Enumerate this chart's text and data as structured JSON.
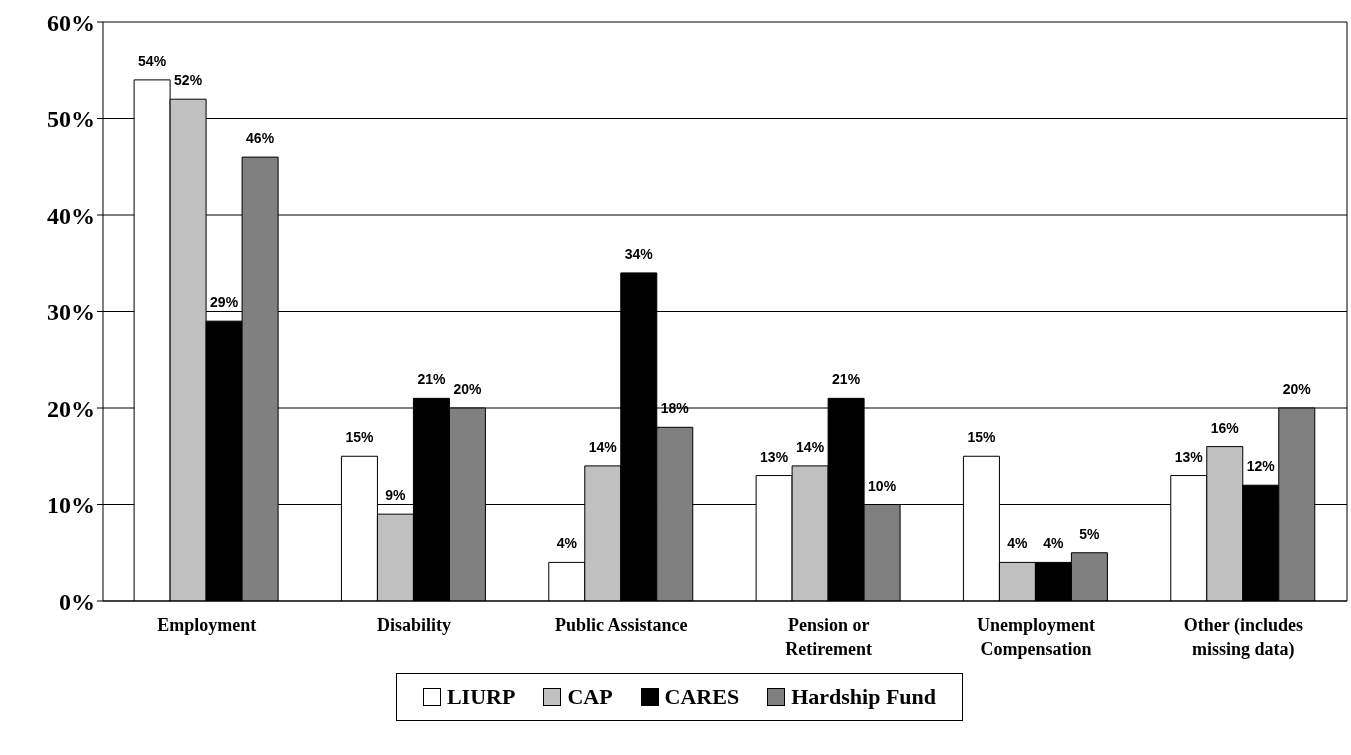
{
  "chart_data": {
    "type": "bar",
    "categories": [
      "Employment",
      "Disability",
      "Public Assistance",
      "Pension or Retirement",
      "Unemployment Compensation",
      "Other (includes missing data)"
    ],
    "series": [
      {
        "name": "LIURP",
        "color": "#ffffff",
        "values": [
          54,
          15,
          4,
          13,
          15,
          13
        ],
        "value_labels": [
          "54%",
          "15%",
          "4%",
          "13%",
          "15%",
          "13%"
        ]
      },
      {
        "name": "CAP",
        "color": "#c0c0c0",
        "values": [
          52,
          9,
          14,
          14,
          4,
          16
        ],
        "value_labels": [
          "52%",
          "9%",
          "14%",
          "14%",
          "4%",
          "16%"
        ]
      },
      {
        "name": "CARES",
        "color": "#000000",
        "values": [
          29,
          21,
          34,
          21,
          4,
          12
        ],
        "value_labels": [
          "29%",
          "21%",
          "34%",
          "21%",
          "4%",
          "12%"
        ]
      },
      {
        "name": "Hardship Fund",
        "color": "#808080",
        "values": [
          46,
          20,
          18,
          10,
          5,
          20
        ],
        "value_labels": [
          "46%",
          "20%",
          "18%",
          "10%",
          "5%",
          "20%"
        ]
      }
    ],
    "ylim": [
      0,
      60
    ],
    "yticks": [
      {
        "value": 0,
        "label": "0%"
      },
      {
        "value": 10,
        "label": "10%"
      },
      {
        "value": 20,
        "label": "20%"
      },
      {
        "value": 30,
        "label": "30%"
      },
      {
        "value": 40,
        "label": "40%"
      },
      {
        "value": 50,
        "label": "50%"
      },
      {
        "value": 60,
        "label": "60%"
      }
    ],
    "grid": "y",
    "legend": "bottom"
  }
}
